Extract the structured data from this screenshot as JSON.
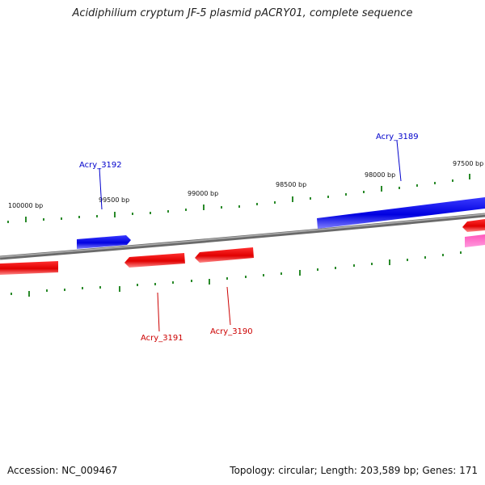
{
  "title": "Acidiphilium cryptum JF-5 plasmid pACRY01, complete sequence",
  "footer": {
    "accession": "Accession: NC_009467",
    "summary": "Topology: circular; Length: 203,589 bp; Genes: 171"
  },
  "ticks": [
    "100000 bp",
    "99500 bp",
    "99000 bp",
    "98500 bp",
    "98000 bp",
    "97500 bp"
  ],
  "genes": [
    {
      "label": "Acry_3192",
      "strand": "forward",
      "color": "#0000cc"
    },
    {
      "label": "Acry_3189",
      "strand": "forward",
      "color": "#0000cc"
    },
    {
      "label": "Acry_3191",
      "strand": "reverse",
      "color": "#cc0000"
    },
    {
      "label": "Acry_3190",
      "strand": "reverse",
      "color": "#cc0000"
    }
  ],
  "colors": {
    "forward": "#0000ee",
    "reverse": "#ee0000",
    "rna": "#ff3399",
    "backbone": "#888888",
    "tick": "#2a8a2a"
  }
}
